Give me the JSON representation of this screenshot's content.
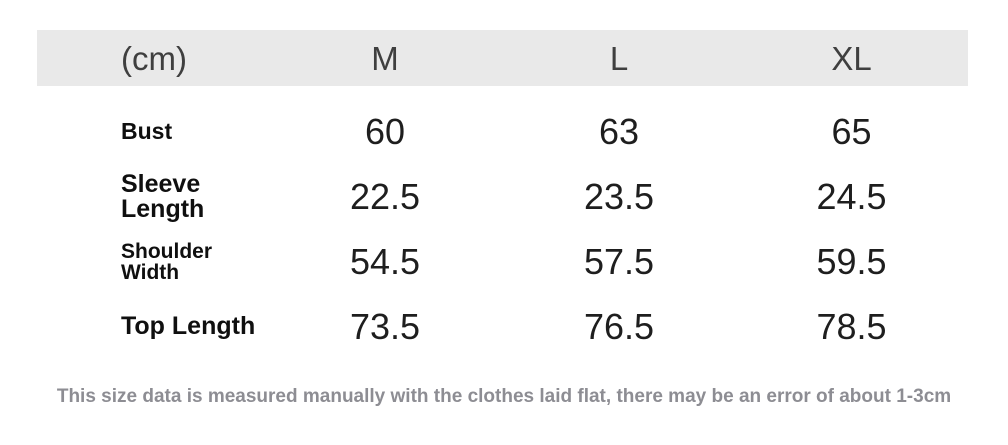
{
  "chart_data": {
    "type": "table",
    "unit_header": "(cm)",
    "size_columns": [
      "M",
      "L",
      "XL"
    ],
    "rows": [
      {
        "label": "Bust",
        "values": [
          "60",
          "63",
          "65"
        ]
      },
      {
        "label": "Sleeve Length",
        "values": [
          "22.5",
          "23.5",
          "24.5"
        ]
      },
      {
        "label": "Shoulder Width",
        "values": [
          "54.5",
          "57.5",
          "59.5"
        ]
      },
      {
        "label": "Top Length",
        "values": [
          "73.5",
          "76.5",
          "78.5"
        ]
      }
    ],
    "note": "This size data is measured manually with the clothes laid flat, there may be an error of about 1-3cm"
  },
  "colors": {
    "header_bg": "#e9e9e9",
    "header_text": "#3f3f3f",
    "value_text": "#1e1e1e",
    "label_text": "#0f0f0f",
    "note_text": "#8d8d93",
    "page_bg": "#ffffff"
  }
}
